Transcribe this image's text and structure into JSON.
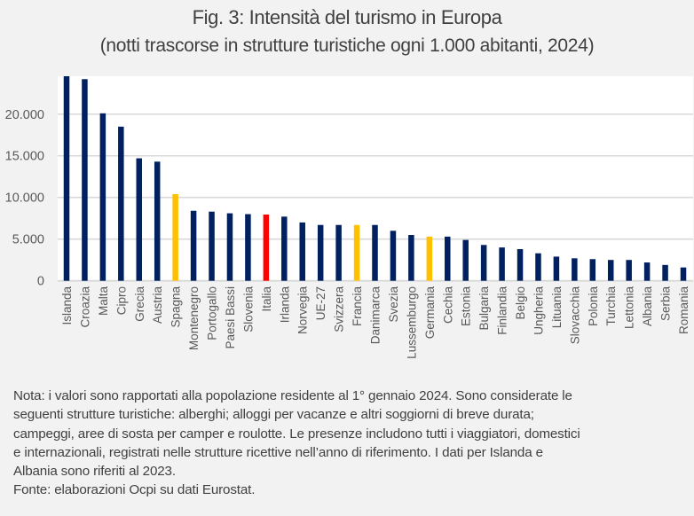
{
  "chart_data": {
    "type": "bar",
    "title": "Fig. 3: Intensità del turismo in Europa",
    "subtitle": "(notti trascorse in strutture turistiche ogni 1.000 abitanti, 2024)",
    "xlabel": "",
    "ylabel": "",
    "ylim": [
      0,
      24550
    ],
    "yticks": [
      0,
      5000,
      10000,
      15000,
      20000
    ],
    "ytick_labels": [
      "0",
      "5.000",
      "10.000",
      "15.000",
      "20.000"
    ],
    "grid": true,
    "legend": "none",
    "categories": [
      "Islanda",
      "Croazia",
      "Malta",
      "Cipro",
      "Grecia",
      "Austria",
      "Spagna",
      "Montenegro",
      "Portogallo",
      "Paesi Bassi",
      "Slovenia",
      "Italia",
      "Irlanda",
      "Norvegia",
      "UE-27",
      "Svizzera",
      "Francia",
      "Danimarca",
      "Svezia",
      "Lussemburgo",
      "Germania",
      "Cechia",
      "Estonia",
      "Bulgaria",
      "Finlandia",
      "Belgio",
      "Ungheria",
      "Lituania",
      "Slovacchia",
      "Polonia",
      "Turchia",
      "Lettonia",
      "Albania",
      "Serbia",
      "Romania"
    ],
    "values": [
      24600,
      24200,
      20100,
      18500,
      14700,
      14300,
      10400,
      8400,
      8300,
      8100,
      8000,
      7950,
      7700,
      7000,
      6700,
      6700,
      6700,
      6700,
      6000,
      5500,
      5300,
      5300,
      4900,
      4300,
      4000,
      3800,
      3300,
      2900,
      2700,
      2600,
      2500,
      2500,
      2200,
      1900,
      1600
    ],
    "highlight": {
      "Spagna": "yellow",
      "Francia": "yellow",
      "Germania": "yellow",
      "Italia": "red"
    },
    "colors": {
      "default": "#002060",
      "yellow": "#FFC000",
      "red": "#FF0000",
      "grid": "#D9D9D9",
      "plot_bg": "#FFFFFF",
      "page_bg": "#F2F2F2",
      "text": "#595959"
    }
  },
  "note": {
    "lines": [
      "Nota: i valori sono rapportati alla popolazione residente al 1° gennaio 2024. Sono considerate le",
      "seguenti strutture turistiche: alberghi; alloggi per vacanze e altri soggiorni di breve durata;",
      "campeggi, aree di sosta per camper e roulotte. Le presenze includono tutti i viaggiatori, domestici",
      "e internazionali, registrati nelle strutture ricettive nell’anno di riferimento. I dati per Islanda e",
      "Albania sono riferiti al 2023."
    ],
    "source": "Fonte: elaborazioni Ocpi su dati Eurostat."
  }
}
